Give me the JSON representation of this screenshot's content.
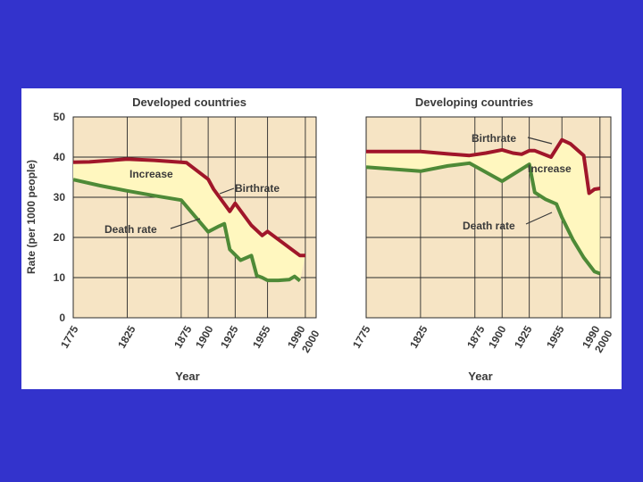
{
  "slide": {
    "background_color": "#3333cc",
    "panel_color": "#ffffff"
  },
  "style": {
    "plot_background": "#f6e4c4",
    "fill_color": "#fff7bf",
    "birth_color": "#a0162a",
    "death_color": "#4e8a37",
    "grid_color": "#2b2b2b"
  },
  "shared": {
    "ylabel": "Rate (per 1000 people)",
    "xlabel": "Year",
    "y_ticks": [
      "0",
      "10",
      "20",
      "30",
      "40",
      "50"
    ],
    "x_ticks": [
      "1775",
      "1825",
      "1875",
      "1900",
      "1925",
      "1955",
      "1990",
      "2000"
    ]
  },
  "chart_data": [
    {
      "type": "area",
      "title": "Developed countries",
      "xlabel": "Year",
      "ylabel": "Rate (per 1000 people)",
      "ylim": [
        0,
        50
      ],
      "x_ticks": [
        1775,
        1825,
        1875,
        1900,
        1925,
        1955,
        1990,
        2000
      ],
      "series": [
        {
          "name": "Birthrate",
          "points": [
            [
              1775,
              38.7
            ],
            [
              1790,
              38.8
            ],
            [
              1800,
              39.0
            ],
            [
              1825,
              39.5
            ],
            [
              1850,
              39.2
            ],
            [
              1875,
              38.7
            ],
            [
              1880,
              38.6
            ],
            [
              1900,
              34.5
            ],
            [
              1905,
              32.0
            ],
            [
              1920,
              26.5
            ],
            [
              1925,
              28.5
            ],
            [
              1940,
              23.0
            ],
            [
              1950,
              20.5
            ],
            [
              1955,
              21.5
            ],
            [
              1965,
              19.5
            ],
            [
              1980,
              16.5
            ],
            [
              1985,
              15.5
            ],
            [
              1990,
              15.5
            ]
          ]
        },
        {
          "name": "Death rate",
          "points": [
            [
              1775,
              34.4
            ],
            [
              1800,
              32.9
            ],
            [
              1825,
              31.6
            ],
            [
              1850,
              30.4
            ],
            [
              1875,
              29.3
            ],
            [
              1900,
              21.4
            ],
            [
              1910,
              22.8
            ],
            [
              1915,
              23.4
            ],
            [
              1920,
              17.0
            ],
            [
              1930,
              14.3
            ],
            [
              1940,
              15.5
            ],
            [
              1945,
              10.5
            ],
            [
              1950,
              10.0
            ],
            [
              1955,
              9.3
            ],
            [
              1965,
              9.3
            ],
            [
              1975,
              9.5
            ],
            [
              1980,
              10.3
            ],
            [
              1985,
              9.2
            ]
          ]
        }
      ],
      "annotations": [
        "Increase",
        "Birthrate",
        "Death rate"
      ]
    },
    {
      "type": "area",
      "title": "Developing countries",
      "xlabel": "Year",
      "ylabel": "",
      "ylim": [
        0,
        50
      ],
      "x_ticks": [
        1775,
        1825,
        1875,
        1900,
        1925,
        1955,
        1990,
        2000
      ],
      "series": [
        {
          "name": "Birthrate",
          "points": [
            [
              1775,
              41.4
            ],
            [
              1800,
              41.4
            ],
            [
              1825,
              41.4
            ],
            [
              1850,
              40.8
            ],
            [
              1870,
              40.4
            ],
            [
              1885,
              41.0
            ],
            [
              1900,
              41.8
            ],
            [
              1910,
              41.0
            ],
            [
              1918,
              40.7
            ],
            [
              1925,
              41.6
            ],
            [
              1930,
              41.6
            ],
            [
              1945,
              40.0
            ],
            [
              1955,
              44.3
            ],
            [
              1963,
              43.3
            ],
            [
              1975,
              40.4
            ],
            [
              1980,
              31.0
            ],
            [
              1985,
              32.0
            ],
            [
              1990,
              32.2
            ]
          ]
        },
        {
          "name": "Death rate",
          "points": [
            [
              1775,
              37.5
            ],
            [
              1800,
              37.0
            ],
            [
              1825,
              36.5
            ],
            [
              1850,
              37.8
            ],
            [
              1870,
              38.5
            ],
            [
              1900,
              34.0
            ],
            [
              1925,
              38.2
            ],
            [
              1930,
              31.2
            ],
            [
              1940,
              29.5
            ],
            [
              1950,
              28.3
            ],
            [
              1955,
              25.0
            ],
            [
              1965,
              19.5
            ],
            [
              1975,
              15.0
            ],
            [
              1985,
              11.5
            ],
            [
              1990,
              11.0
            ]
          ]
        }
      ],
      "annotations": [
        "Birthrate",
        "Increase",
        "Death rate"
      ]
    }
  ]
}
